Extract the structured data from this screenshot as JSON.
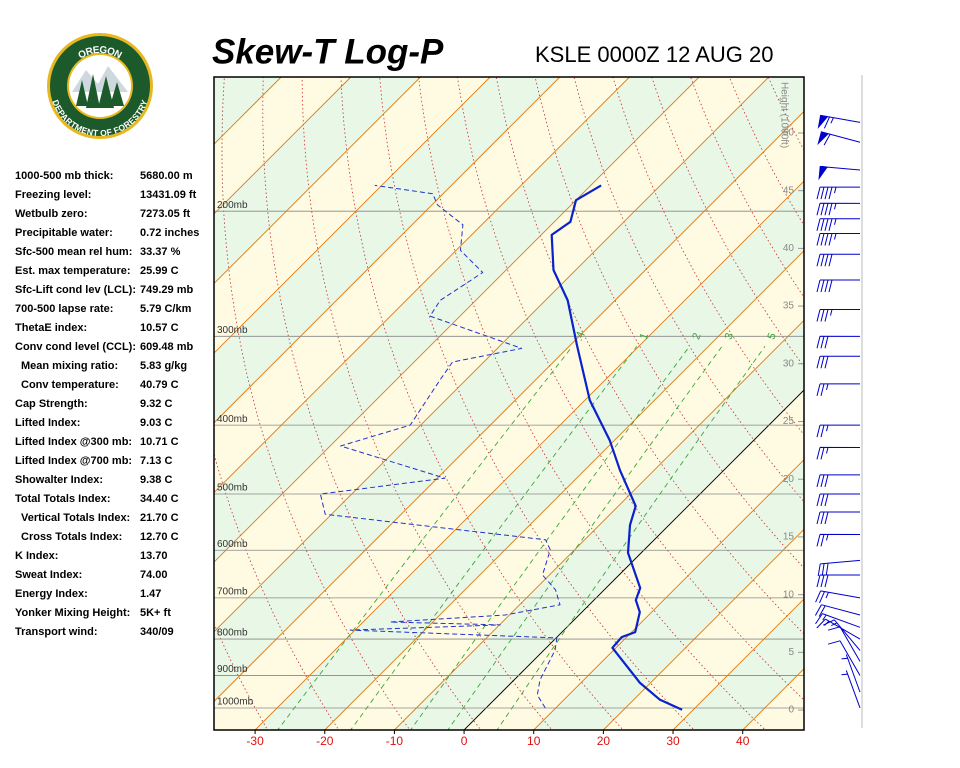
{
  "logo": {
    "top": "OREGON",
    "bottom": "DEPARTMENT OF FORESTRY"
  },
  "stats": [
    {
      "label": "1000-500 mb thick:",
      "value": "5680.00 m",
      "indent": false
    },
    {
      "label": "Freezing level:",
      "value": "13431.09 ft",
      "indent": false
    },
    {
      "label": "Wetbulb zero:",
      "value": "7273.05 ft",
      "indent": false
    },
    {
      "label": "Precipitable water:",
      "value": "0.72 inches",
      "indent": false
    },
    {
      "label": "Sfc-500 mean rel hum:",
      "value": "33.37 %",
      "indent": false
    },
    {
      "label": "Est. max temperature:",
      "value": "25.99 C",
      "indent": false
    },
    {
      "label": "Sfc-Lift cond lev (LCL):",
      "value": "749.29 mb",
      "indent": false
    },
    {
      "label": "700-500 lapse rate:",
      "value": "5.79 C/km",
      "indent": false
    },
    {
      "label": "ThetaE index:",
      "value": "10.57 C",
      "indent": false
    },
    {
      "label": "Conv cond level (CCL):",
      "value": "609.48 mb",
      "indent": false
    },
    {
      "label": "Mean mixing ratio:",
      "value": "5.83 g/kg",
      "indent": true
    },
    {
      "label": "Conv temperature:",
      "value": "40.79 C",
      "indent": true
    },
    {
      "label": "Cap Strength:",
      "value": "9.32 C",
      "indent": false
    },
    {
      "label": "Lifted Index:",
      "value": "9.03 C",
      "indent": false
    },
    {
      "label": "Lifted Index @300 mb:",
      "value": "10.71 C",
      "indent": false
    },
    {
      "label": "Lifted Index @700 mb:",
      "value": "7.13 C",
      "indent": false
    },
    {
      "label": "Showalter Index:",
      "value": "9.38 C",
      "indent": false
    },
    {
      "label": "Total Totals Index:",
      "value": "34.40 C",
      "indent": false
    },
    {
      "label": "Vertical Totals Index:",
      "value": "21.70 C",
      "indent": true
    },
    {
      "label": "Cross Totals Index:",
      "value": "12.70 C",
      "indent": true
    },
    {
      "label": "K Index:",
      "value": "13.70",
      "indent": false
    },
    {
      "label": "Sweat Index:",
      "value": "74.00",
      "indent": false
    },
    {
      "label": "Energy Index:",
      "value": "1.47",
      "indent": false
    },
    {
      "label": "Yonker Mixing Height:",
      "value": "5K+ ft",
      "indent": false
    },
    {
      "label": "Transport wind:",
      "value": "340/09",
      "indent": false
    }
  ],
  "chart_data": {
    "type": "skewt",
    "title": "Skew-T Log-P",
    "subtitle": "KSLE 0000Z 12 AUG 20",
    "height_axis_label": "Height (1000ft)",
    "xlim": [
      -35.9,
      48.8
    ],
    "xticks": [
      -30,
      -20,
      -10,
      0,
      10,
      20,
      30,
      40
    ],
    "ylim": [
      1074,
      129.5
    ],
    "log_y": true,
    "yticks": [
      {
        "value": 200,
        "label": "200mb"
      },
      {
        "value": 300,
        "label": "300mb"
      },
      {
        "value": 400,
        "label": "400mb"
      },
      {
        "value": 500,
        "label": "500mb"
      },
      {
        "value": 600,
        "label": "600mb"
      },
      {
        "value": 700,
        "label": "700mb"
      },
      {
        "value": 800,
        "label": "800mb"
      },
      {
        "value": 900,
        "label": "900mb"
      },
      {
        "value": 1000,
        "label": "1000mb"
      }
    ],
    "height_lim": [
      -1.73,
      54.85
    ],
    "height_ticks": [
      0,
      5,
      10,
      15,
      20,
      25,
      30,
      35,
      40,
      45,
      50
    ],
    "mixing_ratio": [
      {
        "value": 0.4,
        "label": ".4"
      },
      1,
      2,
      3,
      5
    ],
    "series": [
      {
        "color": "#0a22cc",
        "style": "solid",
        "p": [
          1006,
          974,
          922,
          823,
          795,
          782,
          733,
          705,
          678,
          605,
          553,
          520,
          463,
          420,
          369,
          309,
          267,
          242,
          216,
          207,
          193,
          184
        ],
        "values": [
          28.4,
          23.8,
          18.5,
          9.5,
          9.3,
          10.5,
          8.3,
          6.0,
          4.9,
          -1.9,
          -5.6,
          -7.5,
          -14.9,
          -20.7,
          -29.3,
          -39.0,
          -46.8,
          -53.2,
          -58.5,
          -57.7,
          -60.0,
          -58.5
        ]
      },
      {
        "color": "#2233cc",
        "style": "dashed",
        "p": [
          1000,
          959,
          913,
          829,
          797,
          777,
          764,
          757,
          740,
          716,
          682,
          650,
          599,
          580,
          534,
          500,
          475,
          428,
          400,
          346,
          326,
          312,
          281,
          267,
          244,
          227,
          209,
          196,
          189,
          184
        ],
        "values": [
          8.5,
          5.5,
          3.7,
          1.6,
          0.1,
          -30.7,
          -9.9,
          -26.1,
          -10.6,
          -4.2,
          -7.0,
          -11.0,
          -13.5,
          -15.6,
          -50.9,
          -54.5,
          -38.9,
          -58.5,
          -51.5,
          -53.7,
          -54.5,
          -46.5,
          -64.3,
          -65.1,
          -63.0,
          -69.4,
          -72.7,
          -79.2,
          -81.5,
          -91.0
        ]
      }
    ],
    "wind_color": "#0000cc",
    "winds": [
      {
        "p": 150,
        "dir": 280,
        "kt": 65
      },
      {
        "p": 160,
        "dir": 285,
        "kt": 60
      },
      {
        "p": 175,
        "dir": 275,
        "kt": 50
      },
      {
        "p": 185,
        "dir": 270,
        "kt": 45
      },
      {
        "p": 195,
        "dir": 270,
        "kt": 45
      },
      {
        "p": 205,
        "dir": 270,
        "kt": 45
      },
      {
        "p": 215,
        "dir": 270,
        "kt": 45
      },
      {
        "p": 230,
        "dir": 270,
        "kt": 40
      },
      {
        "p": 250,
        "dir": 270,
        "kt": 40
      },
      {
        "p": 275,
        "dir": 270,
        "kt": 35
      },
      {
        "p": 300,
        "dir": 270,
        "kt": 30
      },
      {
        "p": 320,
        "dir": 270,
        "kt": 30
      },
      {
        "p": 350,
        "dir": 270,
        "kt": 25
      },
      {
        "p": 400,
        "dir": 270,
        "kt": 25
      },
      {
        "p": 430,
        "dir": 270,
        "kt": 25
      },
      {
        "p": 470,
        "dir": 270,
        "kt": 30
      },
      {
        "p": 500,
        "dir": 270,
        "kt": 30
      },
      {
        "p": 530,
        "dir": 270,
        "kt": 30
      },
      {
        "p": 570,
        "dir": 270,
        "kt": 25
      },
      {
        "p": 620,
        "dir": 265,
        "kt": 30
      },
      {
        "p": 650,
        "dir": 270,
        "kt": 30
      },
      {
        "p": 700,
        "dir": 280,
        "kt": 25
      },
      {
        "p": 740,
        "dir": 285,
        "kt": 20
      },
      {
        "p": 770,
        "dir": 290,
        "kt": 15
      },
      {
        "p": 800,
        "dir": 300,
        "kt": 15
      },
      {
        "p": 830,
        "dir": 320,
        "kt": 15
      },
      {
        "p": 860,
        "dir": 330,
        "kt": 10
      },
      {
        "p": 900,
        "dir": 330,
        "kt": 10
      },
      {
        "p": 950,
        "dir": 340,
        "kt": 5
      },
      {
        "p": 1000,
        "dir": 340,
        "kt": 5
      }
    ]
  }
}
